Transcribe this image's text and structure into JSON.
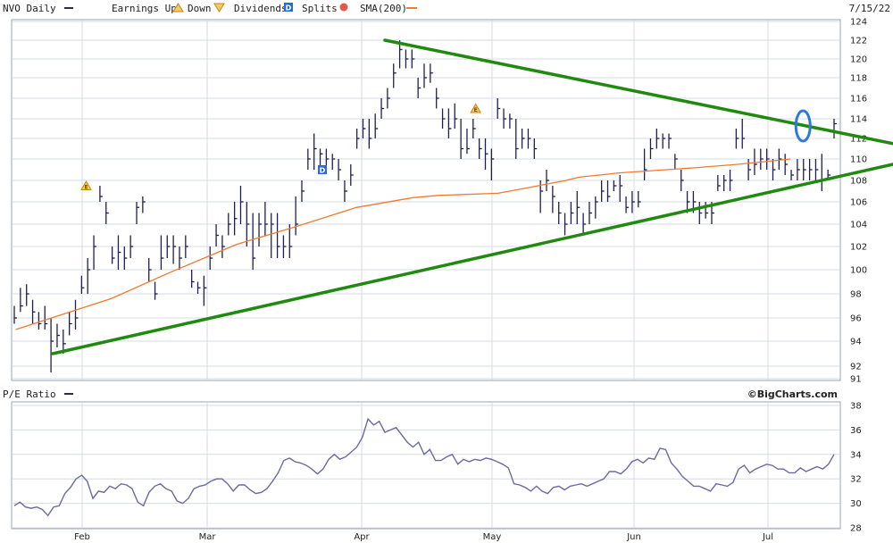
{
  "header": {
    "ticker": "NVO Daily",
    "earnings_up": "Earnings Up",
    "down": "Down",
    "dividends": "Dividends",
    "splits": "Splits",
    "sma": "SMA(200)",
    "date": "7/15/22"
  },
  "pe_panel": {
    "title": "P/E Ratio"
  },
  "watermark": "©BigCharts.com",
  "colors": {
    "price_bar": "#1f1f4f",
    "sma": "#f07a30",
    "trendline": "#1f8a0f",
    "pe_line": "#6a6aa0",
    "grid": "#d6dce6",
    "highlight": "#2a7ad8",
    "earnings_icon": "#e09a20",
    "dividend_icon": "#2a6ad8"
  },
  "chart_data": [
    {
      "type": "line",
      "title": "NVO Daily",
      "x_labels": [
        "Feb",
        "Mar",
        "Apr",
        "May",
        "Jun",
        "Jul"
      ],
      "ylim": [
        91,
        124
      ],
      "y_ticks": [
        91,
        92,
        94,
        96,
        98,
        100,
        102,
        104,
        106,
        108,
        110,
        112,
        114,
        116,
        118,
        120,
        122,
        124
      ],
      "grid": true,
      "price_bars": [
        [
          96,
          95.5,
          97
        ],
        [
          97,
          96.5,
          98.5
        ],
        [
          98,
          97,
          98.8
        ],
        [
          96.5,
          95.5,
          97.5
        ],
        [
          95.5,
          95,
          96.5
        ],
        [
          95.5,
          95,
          97
        ],
        [
          94,
          91.5,
          96
        ],
        [
          94.5,
          93.5,
          95.5
        ],
        [
          93.8,
          93,
          95
        ],
        [
          95.5,
          94.5,
          96.5
        ],
        [
          96,
          95,
          97.5
        ],
        [
          98.5,
          98,
          99.5
        ],
        [
          100,
          98,
          101
        ],
        [
          102,
          100,
          103
        ],
        [
          106.5,
          106,
          107.5
        ],
        [
          105,
          104,
          106
        ],
        [
          101,
          100.5,
          102
        ],
        [
          101.5,
          100,
          103
        ],
        [
          101,
          100,
          102
        ],
        [
          102,
          101,
          103
        ],
        [
          105.5,
          104,
          106
        ],
        [
          106,
          105,
          106.5
        ],
        [
          100,
          99,
          101
        ],
        [
          98,
          97.5,
          99
        ],
        [
          101,
          100,
          103
        ],
        [
          102,
          101,
          103
        ],
        [
          102,
          100.5,
          103
        ],
        [
          101,
          100,
          102
        ],
        [
          102,
          101,
          103
        ],
        [
          99,
          98.5,
          100
        ],
        [
          98.5,
          98,
          99
        ],
        [
          98.5,
          97,
          99.5
        ],
        [
          101,
          100,
          102
        ],
        [
          103,
          102,
          104
        ],
        [
          102,
          101,
          103
        ],
        [
          104,
          103,
          105
        ],
        [
          104.5,
          103,
          106
        ],
        [
          106,
          104,
          107.5
        ],
        [
          104,
          102,
          106
        ],
        [
          101,
          100,
          105
        ],
        [
          104,
          102,
          105
        ],
        [
          104,
          103,
          106
        ],
        [
          104,
          101,
          105
        ],
        [
          102,
          101,
          105
        ],
        [
          102,
          101,
          103
        ],
        [
          102,
          101,
          104
        ],
        [
          104,
          103,
          106.5
        ],
        [
          107,
          106,
          108
        ],
        [
          110,
          109,
          111
        ],
        [
          111,
          109,
          112.5
        ],
        [
          110.5,
          109,
          111
        ],
        [
          110,
          109,
          111
        ],
        [
          110,
          109,
          110.5
        ],
        [
          109,
          108,
          110
        ],
        [
          107,
          106,
          108
        ],
        [
          108.5,
          107.5,
          109.5
        ],
        [
          112,
          111,
          113
        ],
        [
          113,
          112,
          114
        ],
        [
          112,
          111,
          114
        ],
        [
          113,
          112,
          114.5
        ],
        [
          115,
          114,
          116
        ],
        [
          116,
          115,
          117
        ],
        [
          118.5,
          117,
          119.5
        ],
        [
          121,
          119,
          122
        ],
        [
          120,
          119,
          121
        ],
        [
          120,
          119,
          121
        ],
        [
          117,
          116,
          118
        ],
        [
          118,
          117,
          119.5
        ],
        [
          118.5,
          117.5,
          119.5
        ],
        [
          116,
          115,
          117
        ],
        [
          114,
          113,
          115
        ],
        [
          113,
          112,
          115
        ],
        [
          114,
          113,
          115.5
        ],
        [
          111,
          110,
          114
        ],
        [
          111,
          110.5,
          113
        ],
        [
          113,
          112,
          114
        ],
        [
          111,
          110,
          112
        ],
        [
          110.5,
          109,
          112
        ],
        [
          110,
          108,
          111
        ],
        [
          115,
          114,
          116
        ],
        [
          114,
          113,
          115
        ],
        [
          114,
          113,
          114.5
        ],
        [
          111,
          110,
          114
        ],
        [
          112,
          111,
          113
        ],
        [
          112,
          111,
          113
        ],
        [
          111,
          110,
          112
        ],
        [
          107,
          105,
          108
        ],
        [
          108,
          107,
          109
        ],
        [
          106.5,
          105,
          107.5
        ],
        [
          105,
          104,
          106
        ],
        [
          104,
          103,
          105
        ],
        [
          105,
          104,
          106
        ],
        [
          105.5,
          104,
          107
        ],
        [
          104,
          103,
          105
        ],
        [
          105,
          104,
          106
        ],
        [
          106,
          104.5,
          106.5
        ],
        [
          107,
          106,
          108
        ],
        [
          106.5,
          106,
          108
        ],
        [
          107.5,
          107,
          108
        ],
        [
          107.5,
          106,
          108.5
        ],
        [
          105.5,
          105,
          106.5
        ],
        [
          106,
          105,
          107
        ],
        [
          106,
          105.5,
          107
        ],
        [
          109,
          108,
          111
        ],
        [
          111,
          110,
          112
        ],
        [
          112,
          111,
          113
        ],
        [
          112,
          111,
          112.5
        ],
        [
          112,
          111,
          112.5
        ],
        [
          110,
          109,
          110.5
        ],
        [
          108,
          107,
          109
        ],
        [
          106,
          105,
          107
        ],
        [
          106,
          105,
          107
        ],
        [
          105,
          104,
          106
        ],
        [
          105,
          104.5,
          106
        ],
        [
          105,
          104,
          106
        ],
        [
          107.5,
          107,
          108.5
        ],
        [
          108,
          107,
          108.5
        ],
        [
          108,
          107,
          109
        ],
        [
          112,
          111,
          113
        ],
        [
          112,
          111,
          114
        ],
        [
          109,
          108,
          110
        ],
        [
          109.5,
          108.5,
          111
        ],
        [
          110,
          109,
          111
        ],
        [
          110,
          109,
          111
        ],
        [
          109,
          108,
          110
        ],
        [
          110,
          109,
          111
        ],
        [
          109.5,
          108.5,
          110.5
        ],
        [
          108.5,
          108,
          109
        ],
        [
          109,
          108,
          110
        ],
        [
          109,
          108,
          110
        ],
        [
          109,
          108,
          110
        ],
        [
          109,
          108,
          110
        ],
        [
          108,
          107,
          110.5
        ],
        [
          108.5,
          108,
          109
        ],
        [
          113.5,
          112,
          114
        ]
      ],
      "sma_200": [
        [
          0.5,
          95
        ],
        [
          12,
          97.6
        ],
        [
          19.2,
          99.8
        ],
        [
          27.2,
          102.2
        ],
        [
          34.4,
          103.8
        ],
        [
          41.6,
          105.5
        ],
        [
          48.5,
          106.4
        ],
        [
          51.5,
          106.6
        ],
        [
          58.7,
          106.8
        ],
        [
          61.5,
          107.2
        ],
        [
          66.9,
          108
        ],
        [
          68.5,
          108.3
        ],
        [
          73.3,
          108.7
        ],
        [
          82.8,
          109.2
        ],
        [
          87.6,
          109.5
        ],
        [
          94,
          110
        ]
      ],
      "trendlines": [
        {
          "from": [
            "2022-01-25",
            93
          ],
          "to": [
            "2022-07-15",
            109.5
          ]
        },
        {
          "from": [
            "2022-04-07",
            122
          ],
          "to": [
            "2022-07-15",
            111.5
          ]
        }
      ],
      "events": [
        {
          "type": "earnings",
          "label": "E",
          "x": 9,
          "y": 107.5
        },
        {
          "type": "earnings",
          "label": "E",
          "x": 56,
          "y": 115
        },
        {
          "type": "dividend",
          "label": "D",
          "x": 37.5,
          "y": 109
        }
      ],
      "highlight": {
        "x": 95.5,
        "y": 113
      }
    },
    {
      "type": "line",
      "title": "P/E Ratio",
      "x_labels": [
        "Feb",
        "Mar",
        "Apr",
        "May",
        "Jun",
        "Jul"
      ],
      "ylim": [
        28,
        38
      ],
      "y_ticks": [
        28,
        30,
        32,
        34,
        36,
        38
      ],
      "grid": true,
      "series": [
        {
          "values": [
            29.8,
            30.1,
            29.7,
            29.6,
            29.7,
            29.5,
            29.0,
            29.7,
            29.8,
            30.8,
            31.3,
            32.0,
            32.3,
            31.8,
            30.4,
            31.0,
            30.9,
            31.4,
            31.2,
            31.6,
            31.5,
            31.2,
            30.1,
            29.8,
            30.9,
            31.4,
            31.6,
            31.2,
            31.0,
            30.2,
            30.0,
            30.4,
            31.2,
            31.4,
            31.5,
            31.8,
            32.0,
            32.0,
            31.6,
            31.0,
            31.5,
            31.5,
            31.1,
            30.8,
            30.9,
            31.2,
            31.8,
            32.5,
            33.5,
            33.7,
            33.4,
            33.3,
            33.1,
            32.8,
            32.4,
            32.8,
            33.6,
            34.0,
            33.6,
            33.8,
            34.2,
            34.6,
            35.4,
            36.9,
            36.4,
            36.7,
            35.8,
            36.0,
            36.2,
            35.6,
            35.0,
            34.6,
            35.0,
            34.0,
            34.4,
            33.5,
            33.5,
            33.8,
            34.0,
            33.2,
            33.6,
            33.4,
            33.6,
            33.5,
            33.7,
            33.6,
            33.4,
            33.2,
            32.9,
            31.6,
            31.5,
            31.3,
            31.0,
            31.4,
            31.0,
            30.8,
            31.3,
            31.4,
            31.1,
            31.4,
            31.5,
            31.6,
            31.4,
            31.6,
            31.8,
            32.0,
            32.6,
            32.6,
            32.4,
            32.8,
            33.4,
            33.6,
            33.3,
            33.7,
            33.6,
            34.5,
            34.4,
            33.3,
            32.8,
            32.2,
            31.8,
            31.4,
            31.4,
            31.2,
            31.0,
            31.6,
            31.5,
            31.4,
            31.7,
            32.8,
            33.1,
            32.5,
            32.8,
            33.0,
            33.2,
            33.1,
            32.8,
            32.8,
            32.5,
            32.5,
            32.9,
            32.6,
            32.8,
            33.0,
            32.8,
            33.2,
            34.0
          ]
        }
      ]
    }
  ]
}
